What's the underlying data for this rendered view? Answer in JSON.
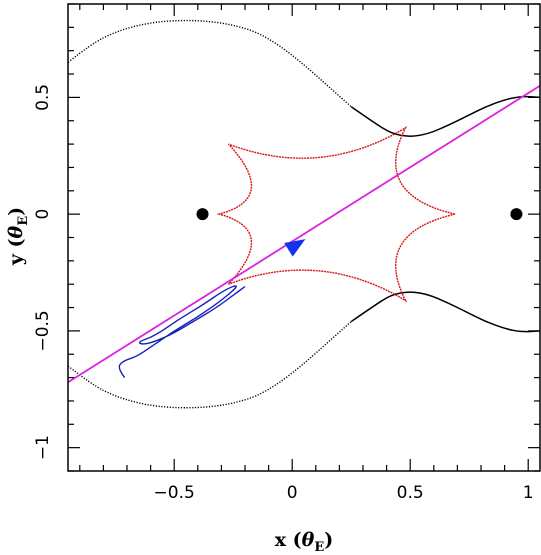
{
  "chart_data": {
    "type": "line",
    "title": "",
    "xlabel": {
      "main": "x (",
      "theta": "θ",
      "sub": "E",
      "close": ")"
    },
    "ylabel": {
      "main": "y (",
      "theta": "θ",
      "sub": "E",
      "close": ")"
    },
    "xlim": [
      -0.95,
      1.05
    ],
    "ylim": [
      -1.1,
      0.9
    ],
    "x_ticks": [
      {
        "value": -0.5,
        "label": "−0.5"
      },
      {
        "value": 0,
        "label": "0"
      },
      {
        "value": 0.5,
        "label": "0.5"
      },
      {
        "value": 1,
        "label": "1"
      }
    ],
    "y_ticks": [
      {
        "value": -1,
        "label": "−1"
      },
      {
        "value": -0.5,
        "label": "−0.5"
      },
      {
        "value": 0,
        "label": "0"
      },
      {
        "value": 0.5,
        "label": "0.5"
      }
    ],
    "grid": false,
    "legend": "none",
    "lenses": [
      {
        "x": -0.38,
        "y": 0.0
      },
      {
        "x": 0.95,
        "y": 0.0
      }
    ],
    "critical_curve_upper": [
      [
        -0.95,
        0.65
      ],
      [
        -0.85,
        0.73
      ],
      [
        -0.75,
        0.78
      ],
      [
        -0.65,
        0.81
      ],
      [
        -0.55,
        0.826
      ],
      [
        -0.45,
        0.83
      ],
      [
        -0.35,
        0.826
      ],
      [
        -0.25,
        0.81
      ],
      [
        -0.15,
        0.78
      ],
      [
        -0.05,
        0.72
      ],
      [
        0.05,
        0.64
      ],
      [
        0.15,
        0.55
      ],
      [
        0.25,
        0.46
      ],
      [
        0.35,
        0.39
      ],
      [
        0.42,
        0.345
      ],
      [
        0.5,
        0.33
      ],
      [
        0.58,
        0.345
      ],
      [
        0.66,
        0.38
      ],
      [
        0.74,
        0.42
      ],
      [
        0.82,
        0.46
      ],
      [
        0.9,
        0.49
      ],
      [
        0.97,
        0.505
      ],
      [
        1.05,
        0.5
      ]
    ],
    "critical_curve_lower": [
      [
        -0.95,
        -0.65
      ],
      [
        -0.85,
        -0.73
      ],
      [
        -0.75,
        -0.78
      ],
      [
        -0.65,
        -0.81
      ],
      [
        -0.55,
        -0.826
      ],
      [
        -0.45,
        -0.83
      ],
      [
        -0.35,
        -0.826
      ],
      [
        -0.25,
        -0.81
      ],
      [
        -0.15,
        -0.78
      ],
      [
        -0.05,
        -0.72
      ],
      [
        0.05,
        -0.64
      ],
      [
        0.15,
        -0.55
      ],
      [
        0.25,
        -0.46
      ],
      [
        0.35,
        -0.39
      ],
      [
        0.42,
        -0.345
      ],
      [
        0.5,
        -0.33
      ],
      [
        0.58,
        -0.345
      ],
      [
        0.66,
        -0.38
      ],
      [
        0.74,
        -0.42
      ],
      [
        0.82,
        -0.46
      ],
      [
        0.9,
        -0.49
      ],
      [
        0.97,
        -0.505
      ],
      [
        1.05,
        -0.5
      ]
    ],
    "caustic_cusps": [
      [
        0.69,
        0.0
      ],
      [
        0.48,
        0.37
      ],
      [
        -0.27,
        0.3
      ],
      [
        -0.31,
        0.0
      ],
      [
        -0.27,
        -0.3
      ],
      [
        0.48,
        -0.37
      ]
    ],
    "source_trajectory": {
      "start": [
        -0.95,
        -0.72
      ],
      "end": [
        1.05,
        0.55
      ],
      "arrow_at": [
        0.02,
        -0.13
      ]
    },
    "light_curve_trace": [
      [
        -0.71,
        -0.7
      ],
      [
        -0.74,
        -0.66
      ],
      [
        -0.72,
        -0.63
      ],
      [
        -0.66,
        -0.61
      ],
      [
        -0.6,
        -0.57
      ],
      [
        -0.5,
        -0.5
      ],
      [
        -0.4,
        -0.44
      ],
      [
        -0.3,
        -0.37
      ],
      [
        -0.22,
        -0.3
      ],
      [
        -0.28,
        -0.32
      ],
      [
        -0.38,
        -0.39
      ],
      [
        -0.48,
        -0.45
      ],
      [
        -0.58,
        -0.52
      ],
      [
        -0.66,
        -0.55
      ],
      [
        -0.62,
        -0.56
      ],
      [
        -0.52,
        -0.52
      ],
      [
        -0.42,
        -0.46
      ],
      [
        -0.32,
        -0.4
      ],
      [
        -0.24,
        -0.34
      ],
      [
        -0.2,
        -0.31
      ]
    ],
    "colors": {
      "critical_curve": "#000000",
      "caustic": "#dd1111",
      "trajectory": "#dd22dd",
      "arrow": "#1133ee",
      "trace": "#1122bb",
      "lens": "#000000"
    }
  }
}
